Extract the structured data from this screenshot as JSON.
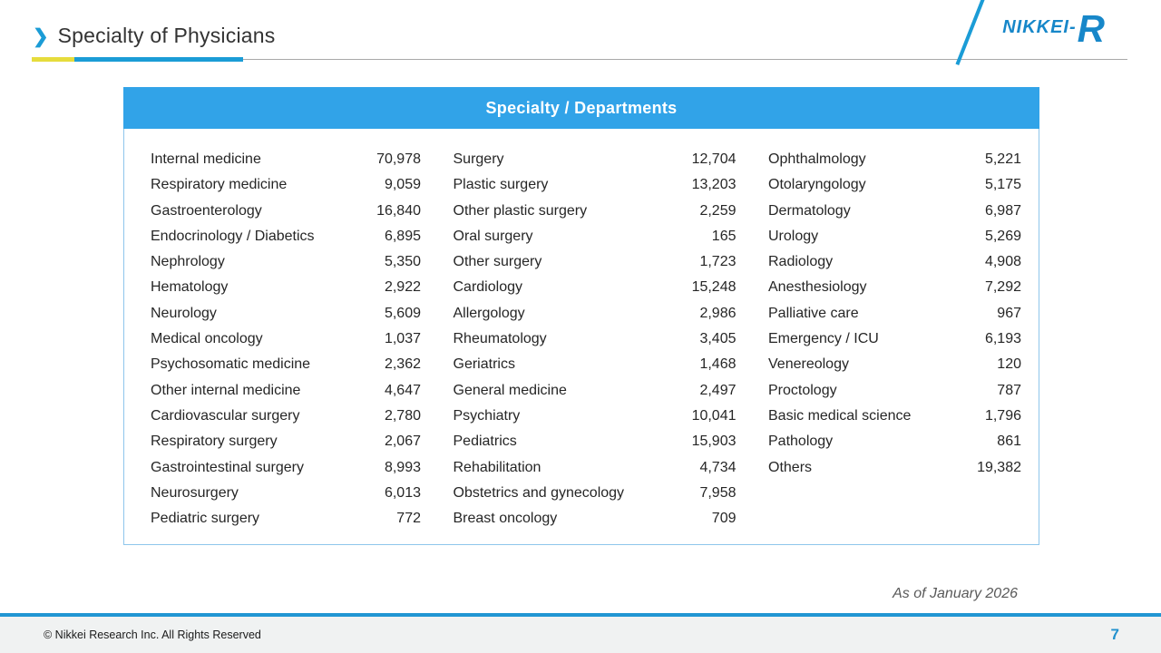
{
  "header": {
    "chevron": "❯",
    "title": "Specialty of Physicians",
    "logo_text": "NIKKEI-",
    "logo_r": "R"
  },
  "table": {
    "header": "Specialty / Departments",
    "columns": [
      {
        "rows": [
          {
            "label": "Internal medicine",
            "value": "70,978"
          },
          {
            "label": "Respiratory medicine",
            "value": "9,059"
          },
          {
            "label": "Gastroenterology",
            "value": "16,840"
          },
          {
            "label": "Endocrinology / Diabetics",
            "value": "6,895"
          },
          {
            "label": "Nephrology",
            "value": "5,350"
          },
          {
            "label": "Hematology",
            "value": "2,922"
          },
          {
            "label": "Neurology",
            "value": "5,609"
          },
          {
            "label": "Medical oncology",
            "value": "1,037"
          },
          {
            "label": "Psychosomatic medicine",
            "value": "2,362"
          },
          {
            "label": "Other internal medicine",
            "value": "4,647"
          },
          {
            "label": "Cardiovascular surgery",
            "value": "2,780"
          },
          {
            "label": "Respiratory surgery",
            "value": "2,067"
          },
          {
            "label": "Gastrointestinal surgery",
            "value": "8,993"
          },
          {
            "label": "Neurosurgery",
            "value": "6,013"
          },
          {
            "label": "Pediatric surgery",
            "value": "772"
          }
        ]
      },
      {
        "rows": [
          {
            "label": "Surgery",
            "value": "12,704"
          },
          {
            "label": "Plastic surgery",
            "value": "13,203"
          },
          {
            "label": "Other plastic surgery",
            "value": "2,259"
          },
          {
            "label": "Oral surgery",
            "value": "165"
          },
          {
            "label": "Other surgery",
            "value": "1,723"
          },
          {
            "label": "Cardiology",
            "value": "15,248"
          },
          {
            "label": "Allergology",
            "value": "2,986"
          },
          {
            "label": "Rheumatology",
            "value": "3,405"
          },
          {
            "label": "Geriatrics",
            "value": "1,468"
          },
          {
            "label": "General medicine",
            "value": "2,497"
          },
          {
            "label": "Psychiatry",
            "value": "10,041"
          },
          {
            "label": "Pediatrics",
            "value": "15,903"
          },
          {
            "label": "Rehabilitation",
            "value": "4,734"
          },
          {
            "label": "Obstetrics and gynecology",
            "value": "7,958"
          },
          {
            "label": "Breast oncology",
            "value": "709"
          }
        ]
      },
      {
        "rows": [
          {
            "label": "Ophthalmology",
            "value": "5,221"
          },
          {
            "label": "Otolaryngology",
            "value": "5,175"
          },
          {
            "label": "Dermatology",
            "value": "6,987"
          },
          {
            "label": "Urology",
            "value": "5,269"
          },
          {
            "label": "Radiology",
            "value": "4,908"
          },
          {
            "label": "Anesthesiology",
            "value": "7,292"
          },
          {
            "label": "Palliative care",
            "value": "967"
          },
          {
            "label": "Emergency / ICU",
            "value": "6,193"
          },
          {
            "label": "Venereology",
            "value": "120"
          },
          {
            "label": "Proctology",
            "value": "787"
          },
          {
            "label": "Basic medical science",
            "value": "1,796"
          },
          {
            "label": "Pathology",
            "value": "861"
          },
          {
            "label": "Others",
            "value": "19,382"
          }
        ]
      }
    ]
  },
  "footer": {
    "as_of": "As of January 2026",
    "copyright": "© Nikkei Research Inc. All Rights Reserved",
    "page_number": "7"
  },
  "colors": {
    "accent_blue": "#1B9CD6",
    "table_header_bg": "#31A3E8",
    "table_border": "#8EC6EC",
    "underline_yellow": "#E6DC3C",
    "logo_blue": "#1787C9",
    "footer_line_blue": "#2196D3",
    "footer_bg": "#F0F2F2",
    "page_number_blue": "#2191CE"
  }
}
